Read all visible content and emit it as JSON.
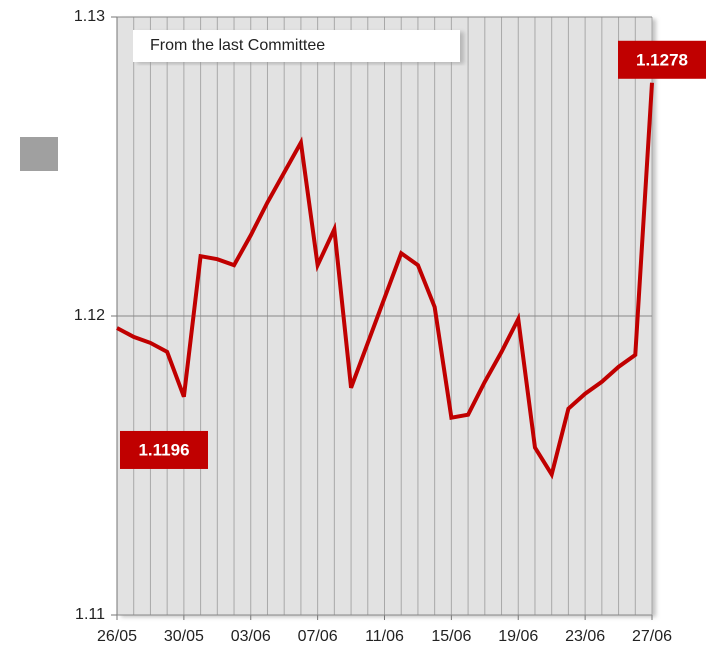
{
  "chart_data": {
    "type": "line",
    "annotation": "From the last Committee",
    "categories": [
      "26/05",
      null,
      null,
      null,
      "30/05",
      null,
      null,
      null,
      "03/06",
      null,
      null,
      null,
      "07/06",
      null,
      null,
      null,
      "11/06",
      null,
      null,
      null,
      "15/06",
      null,
      null,
      null,
      "19/06",
      null,
      null,
      null,
      "23/06",
      null,
      null,
      null,
      "27/06"
    ],
    "series": [
      {
        "color": "#c00000",
        "values": [
          1.1196,
          1.1193,
          1.1191,
          1.1188,
          1.1173,
          1.122,
          1.1219,
          1.1217,
          1.1227,
          1.1238,
          1.1248,
          1.1258,
          1.1217,
          1.1229,
          1.1176,
          1.1191,
          1.1206,
          1.1221,
          1.1217,
          1.1203,
          1.1166,
          1.1167,
          1.1178,
          1.1188,
          1.1199,
          1.1156,
          1.1147,
          1.1169,
          1.1174,
          1.1178,
          1.1183,
          1.1187,
          1.1278
        ]
      }
    ],
    "labeled_points": [
      0,
      32
    ],
    "ylim": [
      1.11,
      1.13
    ],
    "yticks": [
      1.11,
      1.12,
      1.13
    ],
    "grid": true
  }
}
